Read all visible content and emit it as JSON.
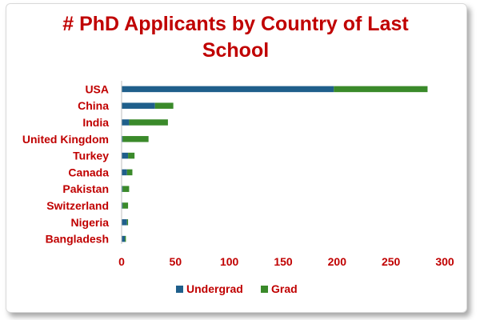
{
  "title_lines": [
    "# PhD Applicants by Country of Last",
    "School"
  ],
  "colors": {
    "title": "#c00000",
    "undergrad": "#1f5f8b",
    "grad": "#3a8a2a",
    "axis": "#bfbfbf"
  },
  "chart_data": {
    "type": "bar",
    "orientation": "horizontal",
    "stacked": true,
    "title": "# PhD Applicants by Country of Last School",
    "categories": [
      "USA",
      "China",
      "India",
      "United Kingdom",
      "Turkey",
      "Canada",
      "Pakistan",
      "Switzerland",
      "Nigeria",
      "Bangladesh"
    ],
    "series": [
      {
        "name": "Undergrad",
        "values": [
          197,
          31,
          7,
          1,
          6,
          5,
          1,
          1,
          5,
          3
        ]
      },
      {
        "name": "Grad",
        "values": [
          87,
          17,
          36,
          24,
          6,
          5,
          6,
          5,
          1,
          1
        ]
      }
    ],
    "xlim": [
      0,
      300
    ],
    "xticks": [
      0,
      50,
      100,
      150,
      200,
      250,
      300
    ],
    "grid": false,
    "legend": "bottom"
  }
}
